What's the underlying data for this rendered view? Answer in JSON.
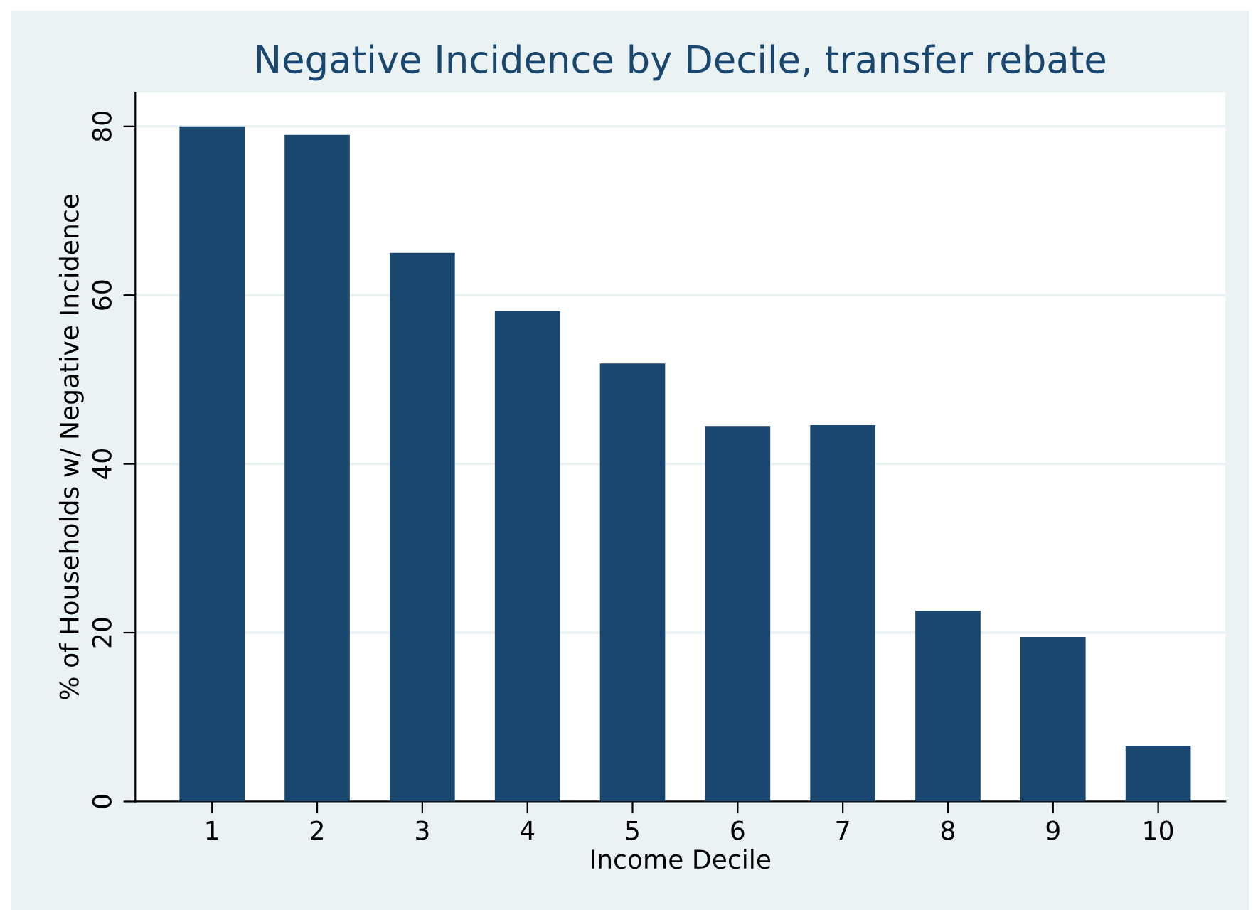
{
  "chart_data": {
    "type": "bar",
    "title": "Negative Incidence by Decile, transfer rebate",
    "xlabel": "Income Decile",
    "ylabel": "% of Households w/ Negative Incidence",
    "categories": [
      "1",
      "2",
      "3",
      "4",
      "5",
      "6",
      "7",
      "8",
      "9",
      "10"
    ],
    "values": [
      80.0,
      79.0,
      65.0,
      58.1,
      51.9,
      44.5,
      44.6,
      22.6,
      19.5,
      6.6
    ],
    "color": "#1a476f",
    "ylim": [
      0,
      84
    ],
    "yticks": [
      0,
      20,
      40,
      60,
      80
    ],
    "grid": "y",
    "legend": false
  }
}
